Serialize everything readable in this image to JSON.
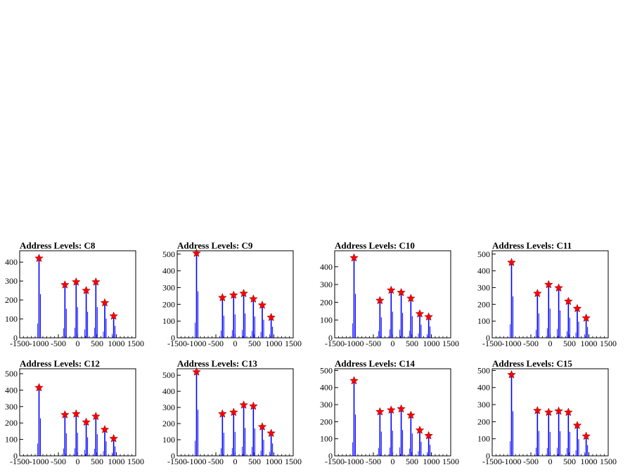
{
  "chart_data": [
    {
      "type": "histogram",
      "title": "Address Levels: C8",
      "xlim": [
        -1500,
        1500
      ],
      "ylim": [
        0,
        460
      ],
      "xticks": [
        -1500,
        -1000,
        -500,
        0,
        500,
        1000,
        1500
      ],
      "xtick_labels": [
        "-1500",
        "-1000",
        "-500",
        "0",
        "500",
        "1000",
        "1500"
      ],
      "yticks": [
        0,
        100,
        200,
        300,
        400
      ],
      "ytick_labels": [
        "0",
        "100",
        "200",
        "300",
        "400"
      ],
      "colors": {
        "bars": "#0000ff",
        "markers": "#ff0000",
        "axes": "#000000"
      },
      "peaks": [
        {
          "x": -1000,
          "y": 420
        },
        {
          "x": -330,
          "y": 280
        },
        {
          "x": -40,
          "y": 295
        },
        {
          "x": 220,
          "y": 250
        },
        {
          "x": 470,
          "y": 295
        },
        {
          "x": 700,
          "y": 185
        },
        {
          "x": 930,
          "y": 115
        }
      ]
    },
    {
      "type": "histogram",
      "title": "Address Levels: C9",
      "xlim": [
        -1500,
        1500
      ],
      "ylim": [
        0,
        520
      ],
      "xticks": [
        -1500,
        -1000,
        -500,
        0,
        500,
        1000,
        1500
      ],
      "xtick_labels": [
        "-1500",
        "-1000",
        "-500",
        "0",
        "500",
        "1000",
        "1500"
      ],
      "yticks": [
        0,
        100,
        200,
        300,
        400,
        500
      ],
      "ytick_labels": [
        "0",
        "100",
        "200",
        "300",
        "400",
        "500"
      ],
      "colors": {
        "bars": "#0000ff",
        "markers": "#ff0000",
        "axes": "#000000"
      },
      "peaks": [
        {
          "x": -1000,
          "y": 505
        },
        {
          "x": -330,
          "y": 240
        },
        {
          "x": -40,
          "y": 255
        },
        {
          "x": 220,
          "y": 265
        },
        {
          "x": 470,
          "y": 232
        },
        {
          "x": 700,
          "y": 195
        },
        {
          "x": 930,
          "y": 122
        }
      ]
    },
    {
      "type": "histogram",
      "title": "Address Levels: C10",
      "xlim": [
        -1500,
        1500
      ],
      "ylim": [
        0,
        490
      ],
      "xticks": [
        -1500,
        -1000,
        -500,
        0,
        500,
        1000,
        1500
      ],
      "xtick_labels": [
        "-1500",
        "-1000",
        "-500",
        "0",
        "500",
        "1000",
        "1500"
      ],
      "yticks": [
        0,
        100,
        200,
        300,
        400
      ],
      "ytick_labels": [
        "0",
        "100",
        "200",
        "300",
        "400"
      ],
      "colors": {
        "bars": "#0000ff",
        "markers": "#ff0000",
        "axes": "#000000"
      },
      "peaks": [
        {
          "x": -1000,
          "y": 450
        },
        {
          "x": -330,
          "y": 210
        },
        {
          "x": -40,
          "y": 268
        },
        {
          "x": 220,
          "y": 255
        },
        {
          "x": 470,
          "y": 222
        },
        {
          "x": 700,
          "y": 135
        },
        {
          "x": 930,
          "y": 118
        }
      ]
    },
    {
      "type": "histogram",
      "title": "Address Levels: C11",
      "xlim": [
        -1500,
        1500
      ],
      "ylim": [
        0,
        520
      ],
      "xticks": [
        -1500,
        -1000,
        -500,
        0,
        500,
        1000,
        1500
      ],
      "xtick_labels": [
        "-1500",
        "-1000",
        "-500",
        "0",
        "500",
        "1000",
        "1500"
      ],
      "yticks": [
        0,
        100,
        200,
        300,
        400,
        500
      ],
      "ytick_labels": [
        "0",
        "100",
        "200",
        "300",
        "400",
        "500"
      ],
      "colors": {
        "bars": "#0000ff",
        "markers": "#ff0000",
        "axes": "#000000"
      },
      "peaks": [
        {
          "x": -1000,
          "y": 450
        },
        {
          "x": -330,
          "y": 265
        },
        {
          "x": -40,
          "y": 318
        },
        {
          "x": 220,
          "y": 298
        },
        {
          "x": 470,
          "y": 218
        },
        {
          "x": 700,
          "y": 175
        },
        {
          "x": 930,
          "y": 118
        }
      ]
    },
    {
      "type": "histogram",
      "title": "Address Levels: C12",
      "xlim": [
        -1500,
        1500
      ],
      "ylim": [
        0,
        530
      ],
      "xticks": [
        -1500,
        -1000,
        -500,
        0,
        500,
        1000,
        1500
      ],
      "xtick_labels": [
        "-1500",
        "-1000",
        "-500",
        "0",
        "500",
        "1000",
        "1500"
      ],
      "yticks": [
        0,
        100,
        200,
        300,
        400,
        500
      ],
      "ytick_labels": [
        "0",
        "100",
        "200",
        "300",
        "400",
        "500"
      ],
      "colors": {
        "bars": "#0000ff",
        "markers": "#ff0000",
        "axes": "#000000"
      },
      "peaks": [
        {
          "x": -1000,
          "y": 415
        },
        {
          "x": -330,
          "y": 250
        },
        {
          "x": -40,
          "y": 255
        },
        {
          "x": 220,
          "y": 205
        },
        {
          "x": 470,
          "y": 240
        },
        {
          "x": 700,
          "y": 160
        },
        {
          "x": 930,
          "y": 105
        }
      ]
    },
    {
      "type": "histogram",
      "title": "Address Levels: C13",
      "xlim": [
        -1500,
        1500
      ],
      "ylim": [
        0,
        540
      ],
      "xticks": [
        -1500,
        -1000,
        -500,
        0,
        500,
        1000,
        1500
      ],
      "xtick_labels": [
        "-1500",
        "-1000",
        "-500",
        "0",
        "500",
        "1000",
        "1500"
      ],
      "yticks": [
        0,
        100,
        200,
        300,
        400,
        500
      ],
      "ytick_labels": [
        "0",
        "100",
        "200",
        "300",
        "400",
        "500"
      ],
      "colors": {
        "bars": "#0000ff",
        "markers": "#ff0000",
        "axes": "#000000"
      },
      "peaks": [
        {
          "x": -1000,
          "y": 520
        },
        {
          "x": -330,
          "y": 260
        },
        {
          "x": -40,
          "y": 270
        },
        {
          "x": 220,
          "y": 315
        },
        {
          "x": 470,
          "y": 308
        },
        {
          "x": 700,
          "y": 180
        },
        {
          "x": 930,
          "y": 140
        }
      ]
    },
    {
      "type": "histogram",
      "title": "Address Levels: C14",
      "xlim": [
        -1500,
        1500
      ],
      "ylim": [
        0,
        510
      ],
      "xticks": [
        -1500,
        -1000,
        -500,
        0,
        500,
        1000,
        1500
      ],
      "xtick_labels": [
        "-1500",
        "-1000",
        "-500",
        "0",
        "500",
        "1000",
        "1500"
      ],
      "yticks": [
        0,
        100,
        200,
        300,
        400,
        500
      ],
      "ytick_labels": [
        "0",
        "100",
        "200",
        "300",
        "400",
        "500"
      ],
      "colors": {
        "bars": "#0000ff",
        "markers": "#ff0000",
        "axes": "#000000"
      },
      "peaks": [
        {
          "x": -1000,
          "y": 440
        },
        {
          "x": -330,
          "y": 258
        },
        {
          "x": -40,
          "y": 268
        },
        {
          "x": 220,
          "y": 275
        },
        {
          "x": 470,
          "y": 238
        },
        {
          "x": 700,
          "y": 150
        },
        {
          "x": 930,
          "y": 118
        }
      ]
    },
    {
      "type": "histogram",
      "title": "Address Levels: C15",
      "xlim": [
        -1500,
        1500
      ],
      "ylim": [
        0,
        510
      ],
      "xticks": [
        -1500,
        -1000,
        -500,
        0,
        500,
        1000,
        1500
      ],
      "xtick_labels": [
        "-1500",
        "-1000",
        "-500",
        "0",
        "500",
        "1000",
        "1500"
      ],
      "yticks": [
        0,
        100,
        200,
        300,
        400,
        500
      ],
      "ytick_labels": [
        "0",
        "100",
        "200",
        "300",
        "400",
        "500"
      ],
      "colors": {
        "bars": "#0000ff",
        "markers": "#ff0000",
        "axes": "#000000"
      },
      "peaks": [
        {
          "x": -1000,
          "y": 475
        },
        {
          "x": -330,
          "y": 265
        },
        {
          "x": -40,
          "y": 255
        },
        {
          "x": 220,
          "y": 262
        },
        {
          "x": 470,
          "y": 255
        },
        {
          "x": 700,
          "y": 178
        },
        {
          "x": 930,
          "y": 115
        }
      ]
    }
  ]
}
